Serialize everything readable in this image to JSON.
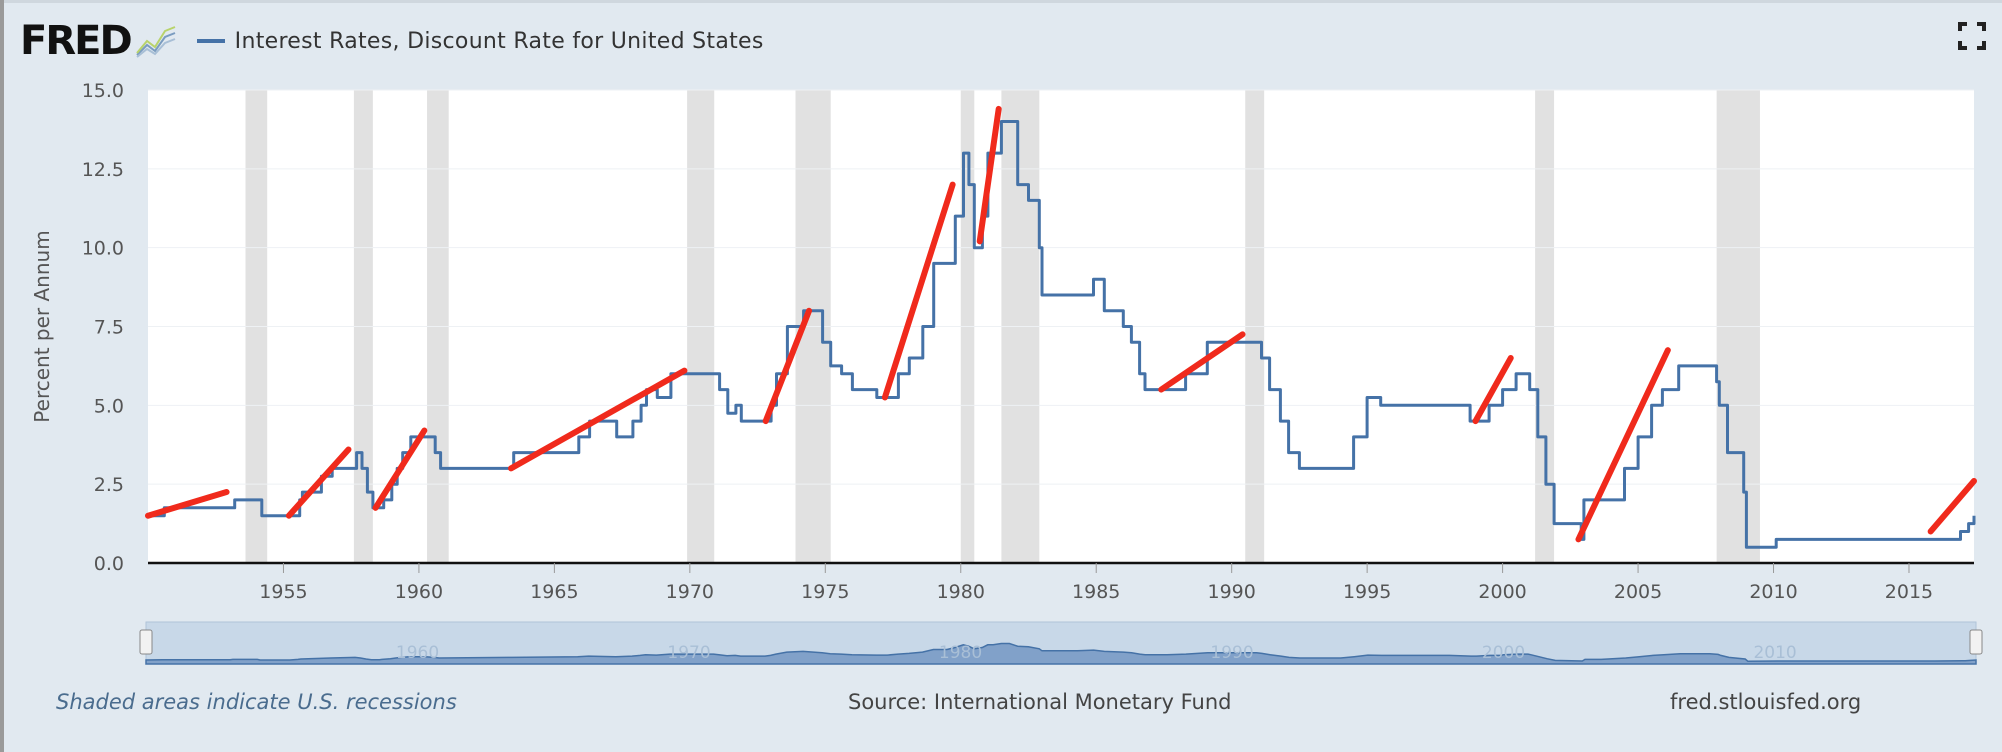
{
  "header": {
    "logo_text": "FRED",
    "series_label": "Interest Rates, Discount Rate for United States"
  },
  "footer": {
    "recession_note": "Shaded areas indicate U.S. recessions",
    "source": "Source: International Monetary Fund",
    "site": "fred.stlouisfed.org"
  },
  "colors": {
    "series": "#4572a7",
    "annotation": "#f02a1c",
    "recession": "#e1e1e1",
    "background": "#e1e9f0"
  },
  "chart_data": {
    "type": "line",
    "title": "Interest Rates, Discount Rate for United States",
    "ylabel": "Percent per Annum",
    "xlabel": "",
    "xlim": [
      1950.0,
      2017.4
    ],
    "ylim": [
      0,
      15
    ],
    "yticks": [
      "0.0",
      "2.5",
      "5.0",
      "7.5",
      "10.0",
      "12.5",
      "15.0"
    ],
    "xticks": [
      "1955",
      "1960",
      "1965",
      "1970",
      "1975",
      "1980",
      "1985",
      "1990",
      "1995",
      "2000",
      "2005",
      "2010",
      "2015"
    ],
    "navigator_labels": [
      "1960",
      "1970",
      "1980",
      "1990",
      "2000",
      "2010"
    ],
    "recessions": [
      [
        1953.6,
        1954.4
      ],
      [
        1957.6,
        1958.3
      ],
      [
        1960.3,
        1961.1
      ],
      [
        1969.9,
        1970.9
      ],
      [
        1973.9,
        1975.2
      ],
      [
        1980.0,
        1980.5
      ],
      [
        1981.5,
        1982.9
      ],
      [
        1990.5,
        1991.2
      ],
      [
        2001.2,
        2001.9
      ],
      [
        2007.9,
        2009.5
      ]
    ],
    "series": [
      {
        "name": "Discount Rate",
        "x": [
          1950.0,
          1950.6,
          1953.1,
          1953.2,
          1954.1,
          1954.2,
          1955.3,
          1955.6,
          1955.7,
          1956.4,
          1956.8,
          1957.7,
          1957.9,
          1958.1,
          1958.3,
          1958.6,
          1958.7,
          1959.0,
          1959.2,
          1959.4,
          1959.7,
          1960.3,
          1960.6,
          1960.8,
          1963.5,
          1965.9,
          1966.3,
          1967.3,
          1967.9,
          1968.2,
          1968.4,
          1968.8,
          1969.3,
          1970.9,
          1971.1,
          1971.4,
          1971.7,
          1971.9,
          1972.8,
          1973.0,
          1973.2,
          1973.6,
          1974.2,
          1974.9,
          1975.2,
          1975.6,
          1976.0,
          1976.9,
          1977.3,
          1977.7,
          1978.1,
          1978.6,
          1979.0,
          1979.5,
          1979.8,
          1980.1,
          1980.3,
          1980.5,
          1980.8,
          1981.0,
          1981.2,
          1981.5,
          1981.8,
          1982.1,
          1982.5,
          1982.9,
          1983.0,
          1984.3,
          1984.9,
          1985.3,
          1986.0,
          1986.3,
          1986.6,
          1986.8,
          1987.6,
          1988.3,
          1989.1,
          1990.9,
          1991.1,
          1991.4,
          1991.8,
          1992.1,
          1992.5,
          1993.0,
          1994.0,
          1994.5,
          1995.0,
          1995.5,
          1996.0,
          1998.0,
          1998.8,
          1999.0,
          1999.5,
          1999.9,
          2000.0,
          2000.5,
          2000.9,
          2001.0,
          2001.3,
          2001.6,
          2001.9,
          2002.9,
          2003.0,
          2003.6,
          2004.5,
          2005.0,
          2005.5,
          2005.9,
          2006.5,
          2007.6,
          2007.9,
          2008.0,
          2008.3,
          2008.9,
          2009.0,
          2010.1,
          2015.9,
          2016.9,
          2017.0,
          2017.2,
          2017.4
        ],
        "values": [
          1.5,
          1.75,
          1.75,
          2.0,
          2.0,
          1.5,
          1.5,
          2.0,
          2.25,
          2.75,
          3.0,
          3.5,
          3.0,
          2.25,
          1.75,
          1.75,
          2.0,
          2.5,
          3.0,
          3.5,
          4.0,
          4.0,
          3.5,
          3.0,
          3.5,
          4.0,
          4.5,
          4.0,
          4.5,
          5.0,
          5.5,
          5.25,
          6.0,
          6.0,
          5.5,
          4.75,
          5.0,
          4.5,
          4.5,
          5.0,
          6.0,
          7.5,
          8.0,
          7.0,
          6.25,
          6.0,
          5.5,
          5.25,
          5.25,
          6.0,
          6.5,
          7.5,
          9.5,
          9.5,
          11.0,
          13.0,
          12.0,
          10.0,
          11.0,
          13.0,
          13.0,
          14.0,
          14.0,
          12.0,
          11.5,
          10.0,
          8.5,
          8.5,
          9.0,
          8.0,
          7.5,
          7.0,
          6.0,
          5.5,
          5.5,
          6.0,
          7.0,
          7.0,
          6.5,
          5.5,
          4.5,
          3.5,
          3.0,
          3.0,
          3.0,
          4.0,
          5.25,
          5.0,
          5.0,
          5.0,
          4.5,
          4.5,
          5.0,
          5.0,
          5.5,
          6.0,
          6.0,
          5.5,
          4.0,
          2.5,
          1.25,
          0.75,
          2.0,
          2.0,
          3.0,
          4.0,
          5.0,
          5.5,
          6.25,
          6.25,
          5.75,
          5.0,
          3.5,
          2.25,
          0.5,
          0.75,
          0.75,
          1.0,
          1.0,
          1.25,
          1.5
        ]
      }
    ],
    "annotations": [
      {
        "x": [
          1950.0,
          1952.9
        ],
        "y": [
          1.5,
          2.25
        ]
      },
      {
        "x": [
          1955.2,
          1957.4
        ],
        "y": [
          1.5,
          3.6
        ]
      },
      {
        "x": [
          1958.4,
          1960.2
        ],
        "y": [
          1.75,
          4.2
        ]
      },
      {
        "x": [
          1963.4,
          1969.8
        ],
        "y": [
          3.0,
          6.1
        ]
      },
      {
        "x": [
          1972.8,
          1974.4
        ],
        "y": [
          4.5,
          8.0
        ]
      },
      {
        "x": [
          1977.2,
          1979.7
        ],
        "y": [
          5.25,
          12.0
        ]
      },
      {
        "x": [
          1980.7,
          1981.4
        ],
        "y": [
          10.2,
          14.4
        ]
      },
      {
        "x": [
          1987.4,
          1990.4
        ],
        "y": [
          5.5,
          7.25
        ]
      },
      {
        "x": [
          1999.0,
          2000.3
        ],
        "y": [
          4.5,
          6.5
        ]
      },
      {
        "x": [
          2002.8,
          2006.1
        ],
        "y": [
          0.75,
          6.75
        ]
      },
      {
        "x": [
          2015.8,
          2017.4
        ],
        "y": [
          1.0,
          2.6
        ]
      }
    ]
  }
}
